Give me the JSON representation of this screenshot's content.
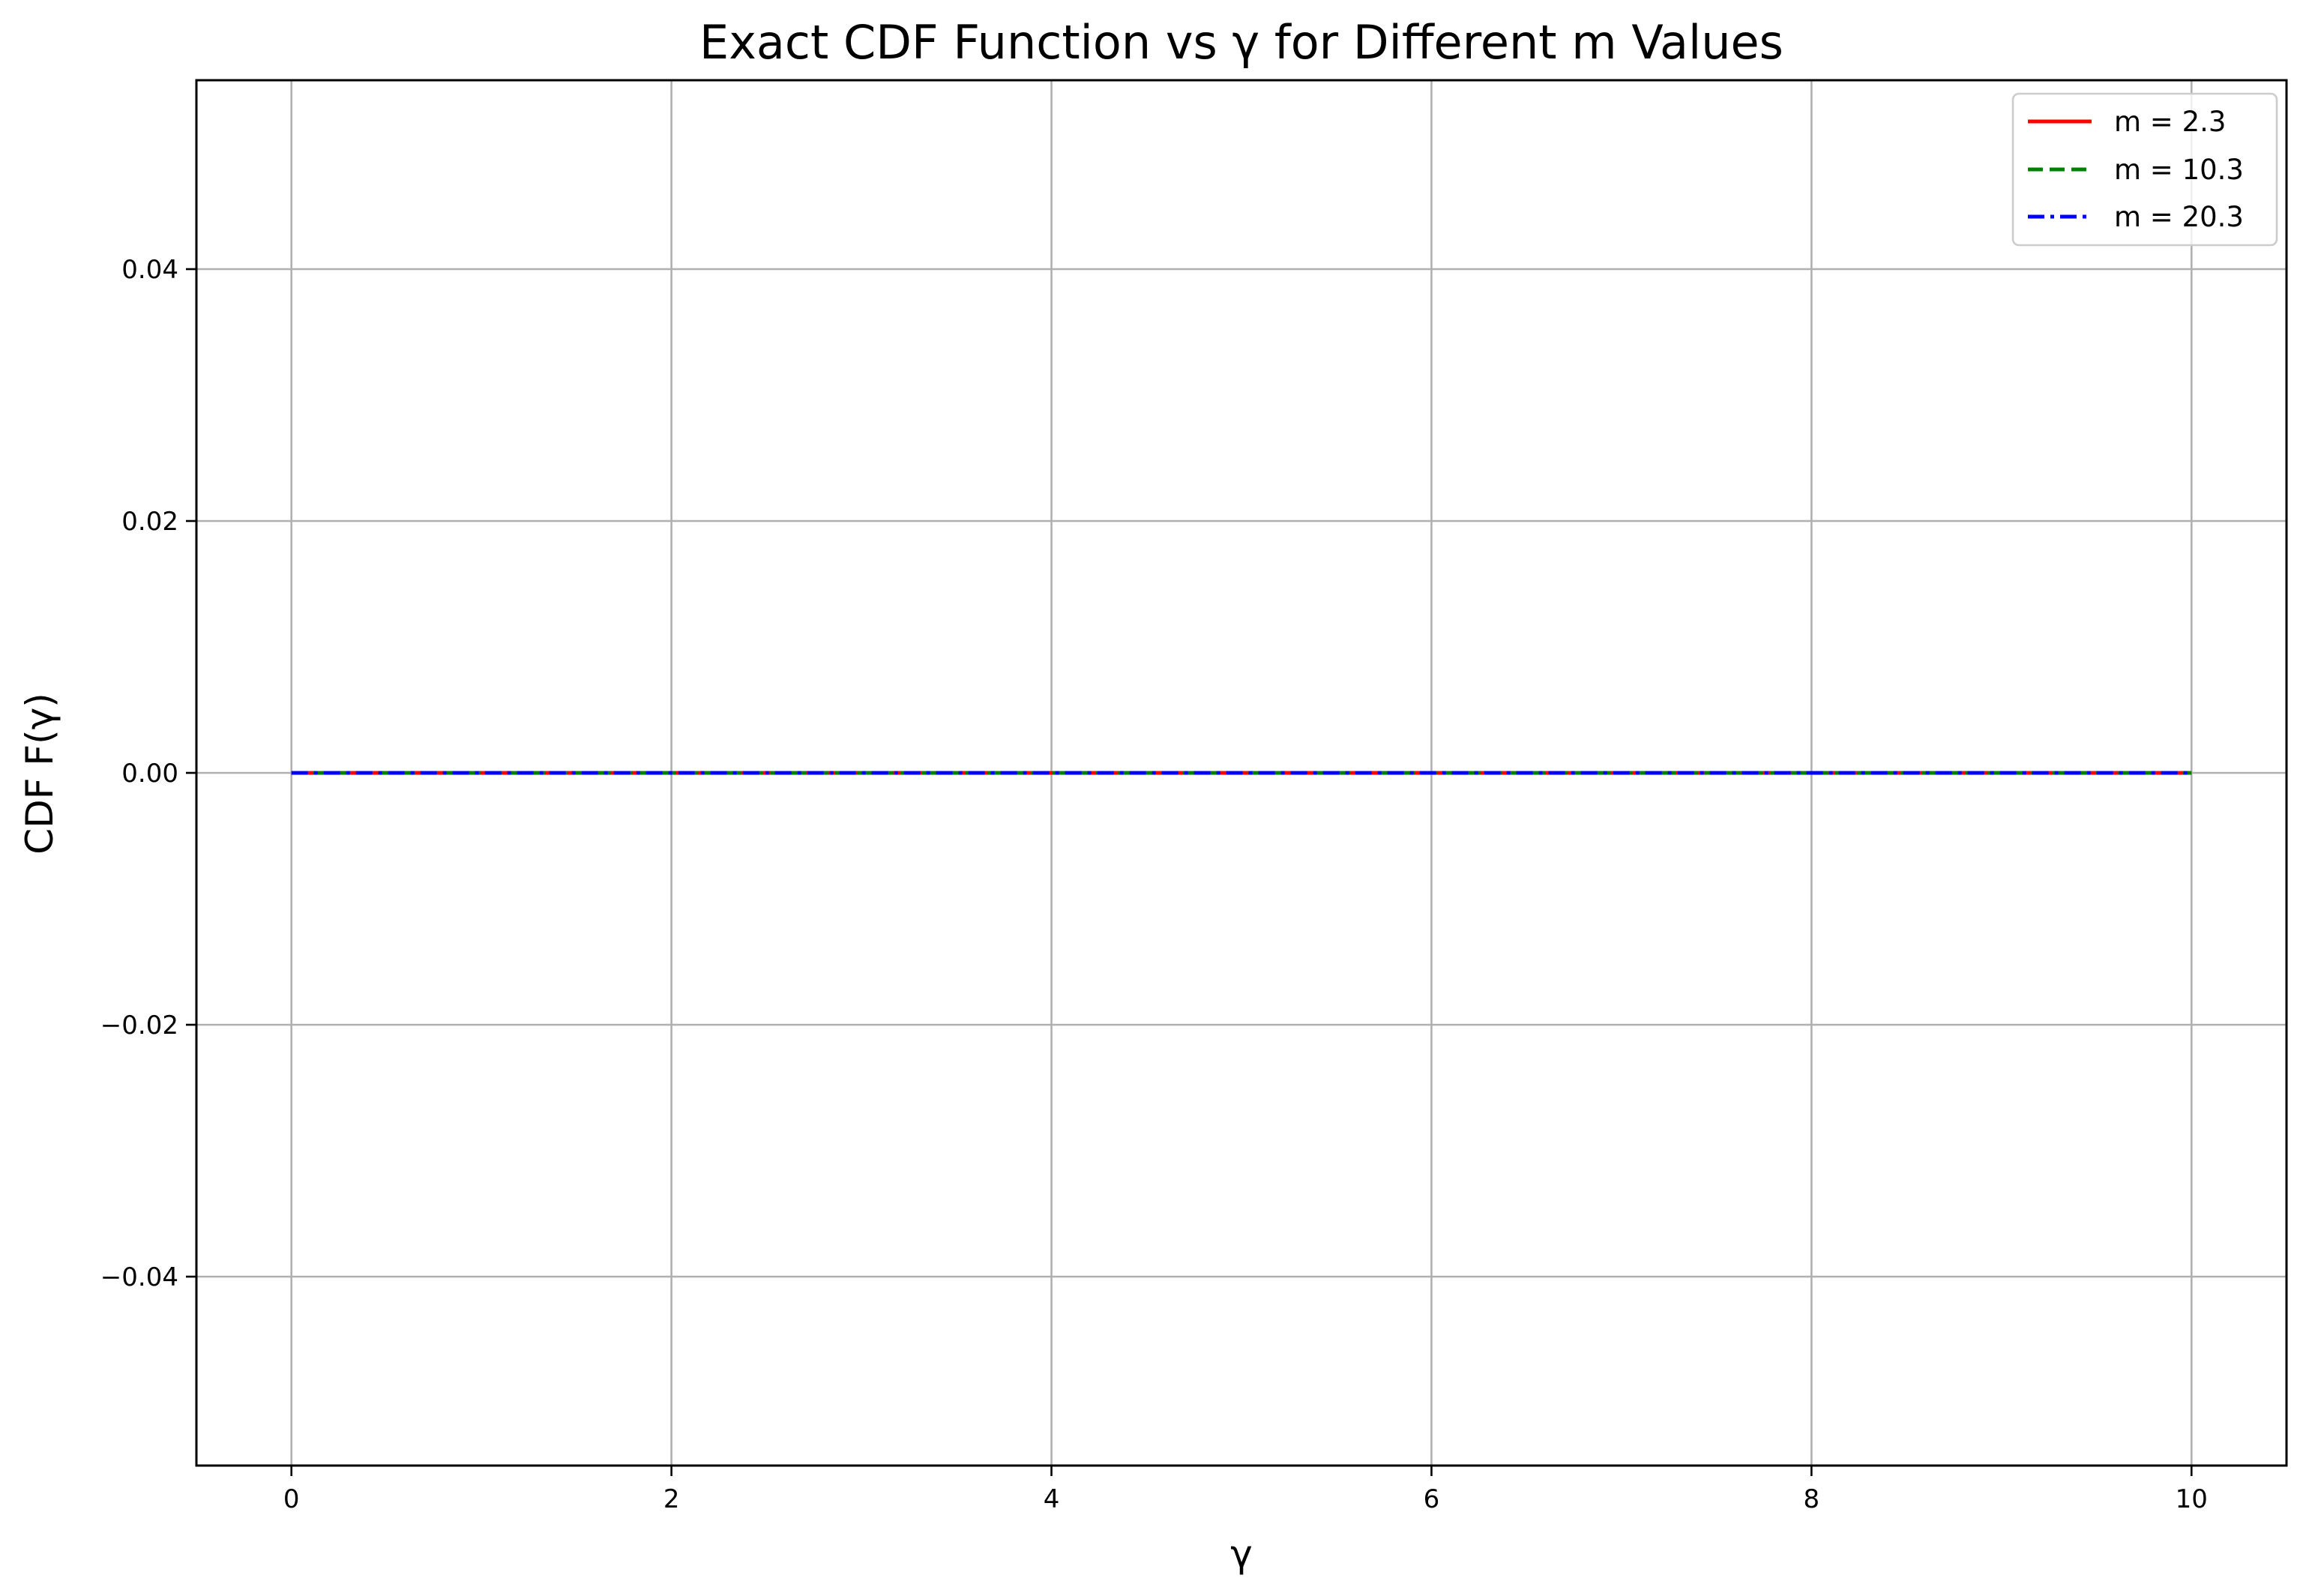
{
  "chart_data": {
    "type": "line",
    "title": "Exact CDF Function vs γ for Different m Values",
    "xlabel": "γ",
    "ylabel": "CDF F(γ)",
    "xlim": [
      -0.5,
      10.5
    ],
    "ylim": [
      -0.055,
      0.055
    ],
    "xticks": [
      0,
      2,
      4,
      6,
      8,
      10
    ],
    "xtick_labels": [
      "0",
      "2",
      "4",
      "6",
      "8",
      "10"
    ],
    "yticks": [
      -0.04,
      -0.02,
      0.0,
      0.02,
      0.04
    ],
    "ytick_labels": [
      "−0.04",
      "−0.02",
      "0.00",
      "0.02",
      "0.04"
    ],
    "grid": true,
    "legend_position": "top-right",
    "series": [
      {
        "name": "m = 2.3",
        "color": "#ff0000",
        "style": "solid",
        "x": [
          0,
          10
        ],
        "y": [
          0,
          0
        ]
      },
      {
        "name": "m = 10.3",
        "color": "#008000",
        "style": "dashed",
        "x": [
          0,
          10
        ],
        "y": [
          0,
          0
        ]
      },
      {
        "name": "m = 20.3",
        "color": "#0000ff",
        "style": "dashdot",
        "x": [
          0,
          10
        ],
        "y": [
          0,
          0
        ]
      }
    ]
  }
}
